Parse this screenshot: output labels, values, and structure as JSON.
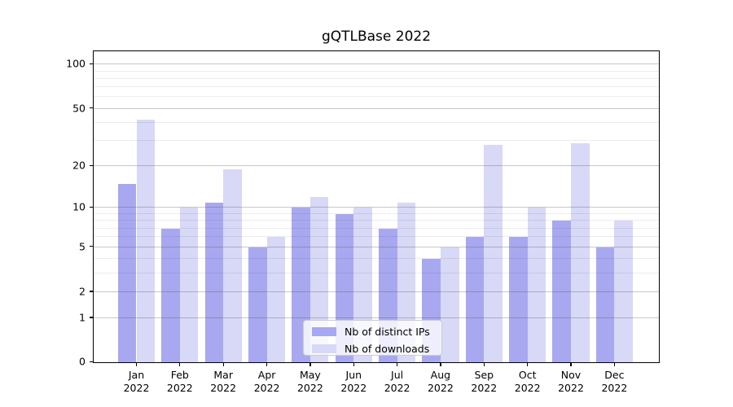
{
  "figure_title": "gQTLBase 2022",
  "legend": {
    "items": [
      {
        "label": "Nb of distinct IPs",
        "color": "#a8a8f0"
      },
      {
        "label": "Nb of downloads",
        "color": "#d8d8f7"
      }
    ]
  },
  "chart_data": {
    "type": "bar",
    "title": "gQTLBase 2022",
    "categories": [
      "Jan 2022",
      "Feb 2022",
      "Mar 2022",
      "Apr 2022",
      "May 2022",
      "Jun 2022",
      "Jul 2022",
      "Aug 2022",
      "Sep 2022",
      "Oct 2022",
      "Nov 2022",
      "Dec 2022"
    ],
    "series": [
      {
        "name": "Nb of distinct IPs",
        "color": "#a8a8f0",
        "values": [
          15,
          7,
          11,
          5,
          10,
          9,
          7,
          4,
          6,
          6,
          8,
          5
        ]
      },
      {
        "name": "Nb of downloads",
        "color": "#d8d8f7",
        "values": [
          42,
          10,
          19,
          6,
          12,
          10,
          11,
          5,
          28,
          10,
          29,
          8
        ]
      }
    ],
    "xlabel": "",
    "ylabel": "",
    "yscale": "log1p",
    "ylim": [
      0,
      124
    ],
    "yticks": [
      0,
      1,
      2,
      5,
      10,
      20,
      50,
      100
    ],
    "yticks_minor": [
      3,
      4,
      6,
      7,
      8,
      9,
      30,
      40,
      60,
      70,
      80,
      90
    ],
    "grid": true,
    "grid_above_bars": true,
    "legend_position": "inside lower-center"
  }
}
